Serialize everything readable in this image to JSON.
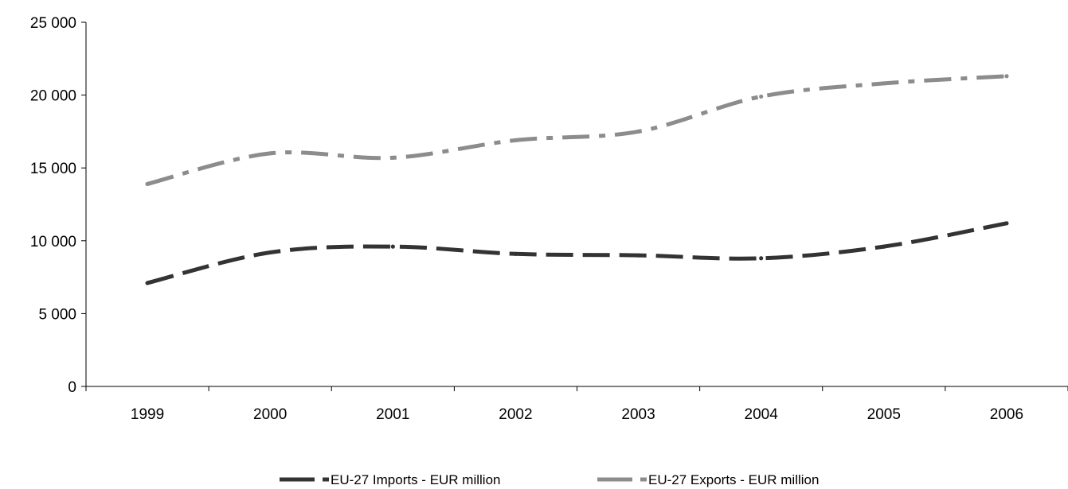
{
  "chart_data": {
    "type": "line",
    "title": "",
    "xlabel": "",
    "ylabel": "",
    "categories": [
      "1999",
      "2000",
      "2001",
      "2002",
      "2003",
      "2004",
      "2005",
      "2006"
    ],
    "ylim": [
      0,
      25000
    ],
    "yticks": [
      0,
      5000,
      10000,
      15000,
      20000,
      25000
    ],
    "ytick_labels": [
      "0",
      "5 000",
      "10 000",
      "15 000",
      "20 000",
      "25 000"
    ],
    "grid": false,
    "legend_position": "bottom",
    "series": [
      {
        "name": "EU-27 Imports - EUR million",
        "color": "#333333",
        "values": [
          7100,
          9200,
          9600,
          9100,
          9000,
          8800,
          9600,
          11200
        ]
      },
      {
        "name": "EU-27 Exports - EUR million",
        "color": "#8c8c8c",
        "values": [
          13900,
          16000,
          15700,
          16900,
          17500,
          19900,
          20800,
          21300
        ]
      }
    ]
  }
}
